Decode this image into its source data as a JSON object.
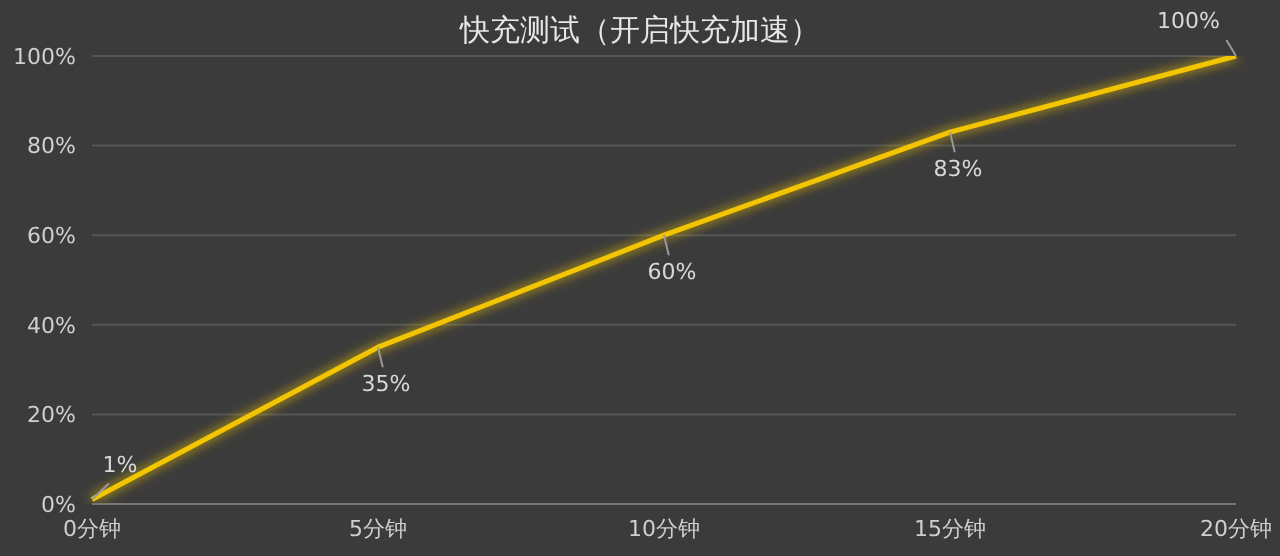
{
  "chart_data": {
    "type": "line",
    "title": "快充测试（开启快充加速）",
    "categories": [
      "0分钟",
      "5分钟",
      "10分钟",
      "15分钟",
      "20分钟"
    ],
    "series": [
      {
        "color": "#f2c500",
        "values": [
          1,
          35,
          60,
          83,
          100
        ],
        "value_labels": [
          "1%",
          "35%",
          "60%",
          "83%",
          "100%"
        ]
      }
    ],
    "ylim": [
      0,
      100
    ],
    "yticks": [
      {
        "value": 0,
        "label": "0%"
      },
      {
        "value": 20,
        "label": "20%"
      },
      {
        "value": 40,
        "label": "40%"
      },
      {
        "value": 60,
        "label": "60%"
      },
      {
        "value": 80,
        "label": "80%"
      },
      {
        "value": 100,
        "label": "100%"
      }
    ],
    "grid": "y",
    "legend": false,
    "marker": "none",
    "line_style": "solid"
  }
}
